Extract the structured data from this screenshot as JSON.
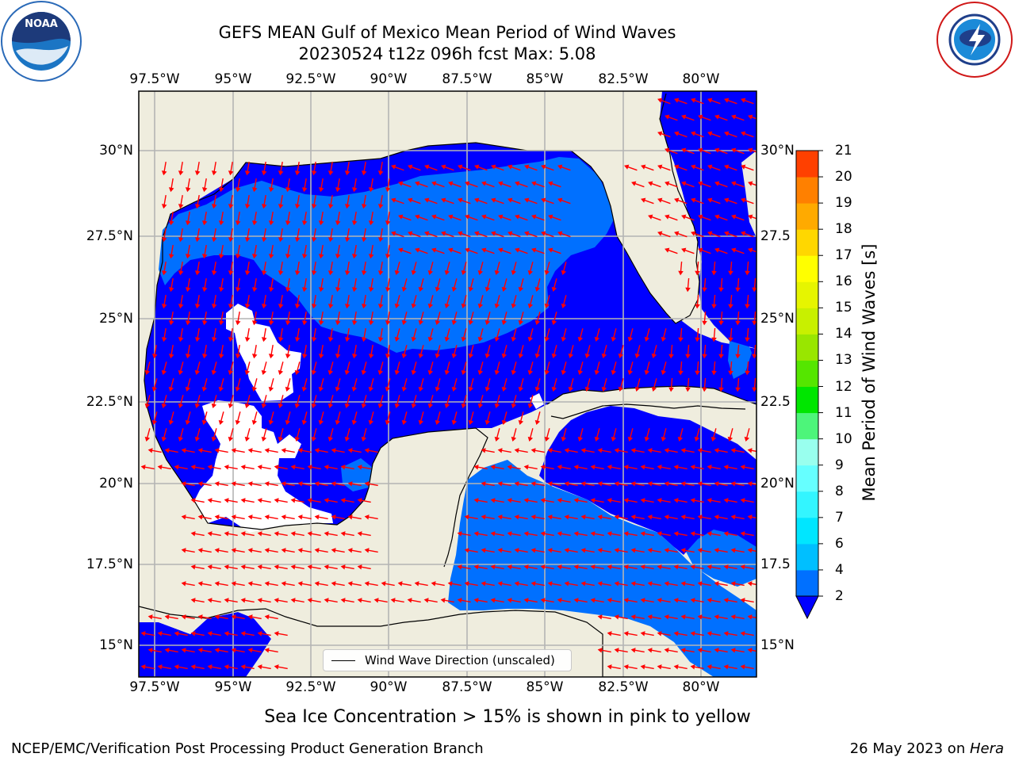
{
  "title": {
    "line1": "GEFS MEAN Gulf of Mexico Mean Period of Wind Waves",
    "line2": "20230524 t12z 096h fcst   Max: 5.08"
  },
  "logos": {
    "noaa": {
      "text": "NOAA",
      "ring_text": "NATIONAL OCEANIC AND ATMOSPHERIC ADMINISTRATION · U.S. DEPARTMENT OF COMMERCE"
    },
    "nws": {
      "ring_text": "NATIONAL WEATHER SERVICE"
    }
  },
  "map": {
    "longitudes": [
      "97.5°W",
      "95°W",
      "92.5°W",
      "90°W",
      "87.5°W",
      "85°W",
      "82.5°W",
      "80°W"
    ],
    "latitudes_left": [
      "30°N",
      "27.5°N",
      "25°N",
      "22.5°N",
      "20°N",
      "17.5°N",
      "15°N"
    ],
    "latitudes_right": [
      "30°N",
      "27.5",
      "25°N",
      "22.5",
      "20°N",
      "17.5",
      "15°N"
    ],
    "legend_label": "Wind Wave Direction (unscaled)",
    "colors": {
      "land": "#efedde",
      "water_deep": "#0000ff",
      "water_light": "#0070ff",
      "ice_free": "#ffffff",
      "arrow": "#ff0000",
      "grid": "#b4b4b4"
    }
  },
  "colorbar": {
    "label": "Mean Period of Wind Waves [s]",
    "ticks": [
      "2",
      "4",
      "6",
      "7",
      "8",
      "9",
      "10",
      "11",
      "12",
      "13",
      "14",
      "15",
      "16",
      "17",
      "18",
      "19",
      "20",
      "21"
    ],
    "colors": [
      "#0070ff",
      "#00bfff",
      "#00e6ff",
      "#33f5ff",
      "#66ffff",
      "#99ffee",
      "#4df57a",
      "#00e600",
      "#55e600",
      "#99e600",
      "#c8f000",
      "#e6f500",
      "#ffff00",
      "#ffd700",
      "#ffaa00",
      "#ff8000",
      "#ff4000",
      "#ff0000"
    ],
    "extend_color": "#0000ff"
  },
  "footer": {
    "note": "Sea Ice Concentration > 15% is shown in pink to yellow",
    "credit": "NCEP/EMC/Verification Post Processing Product Generation Branch",
    "date": "26 May 2023 on ",
    "machine": "Hera"
  }
}
